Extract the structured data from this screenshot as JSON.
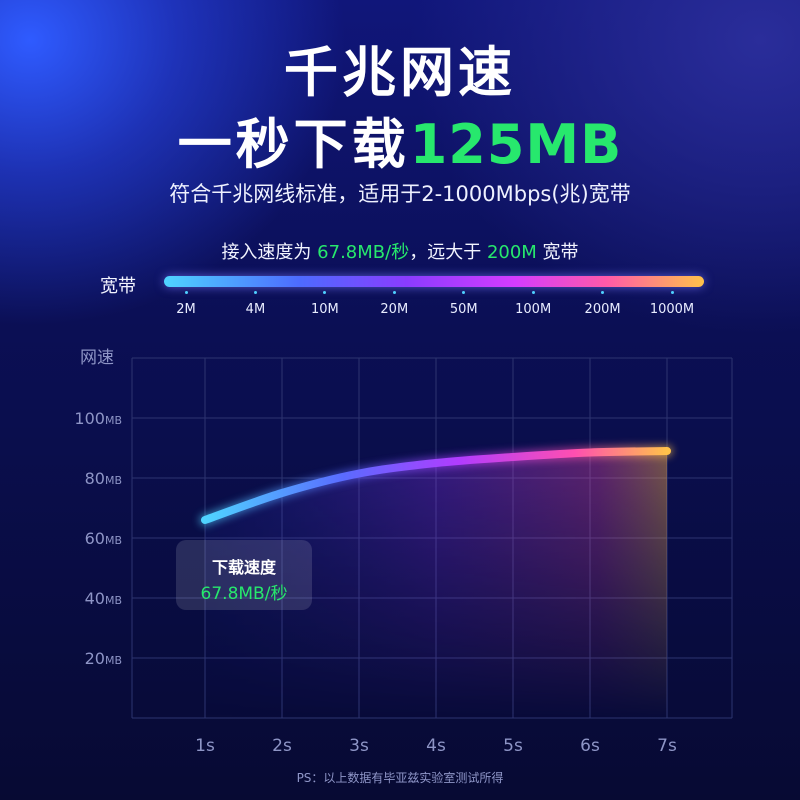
{
  "headline": {
    "line1": "千兆网速",
    "line2_prefix": "一秒下载",
    "line2_accent": "125MB",
    "subtitle": "符合千兆网线标准，适用于2-1000Mbps(兆)宽带"
  },
  "access": {
    "part1": "接入速度为 ",
    "speed": "67.8MB/秒",
    "part2": "，远大于 ",
    "compare": "200M",
    "part3": " 宽带"
  },
  "bandwidth": {
    "label": "宽带",
    "ticks": [
      "2M",
      "4M",
      "10M",
      "20M",
      "50M",
      "100M",
      "200M",
      "1000M"
    ]
  },
  "tooltip": {
    "label": "下载速度",
    "value": "67.8MB/秒"
  },
  "caption": "PS：以上数据有毕亚兹实验室测试所得",
  "colors": {
    "accent_green": "#27e86d",
    "curve_start": "#4fd4ff",
    "curve_end": "#ffc24a"
  },
  "chart_data": {
    "type": "line",
    "title": "",
    "ylabel": "网速",
    "xlabel": "",
    "categories": [
      "1s",
      "2s",
      "3s",
      "4s",
      "5s",
      "6s",
      "7s"
    ],
    "y_ticks": [
      20,
      40,
      60,
      80,
      100
    ],
    "y_unit": "MB",
    "ylim": [
      0,
      120
    ],
    "series": [
      {
        "values": [
          66,
          75,
          81.5,
          85,
          87,
          88.5,
          89
        ]
      }
    ],
    "grid": true,
    "legend": "none"
  }
}
